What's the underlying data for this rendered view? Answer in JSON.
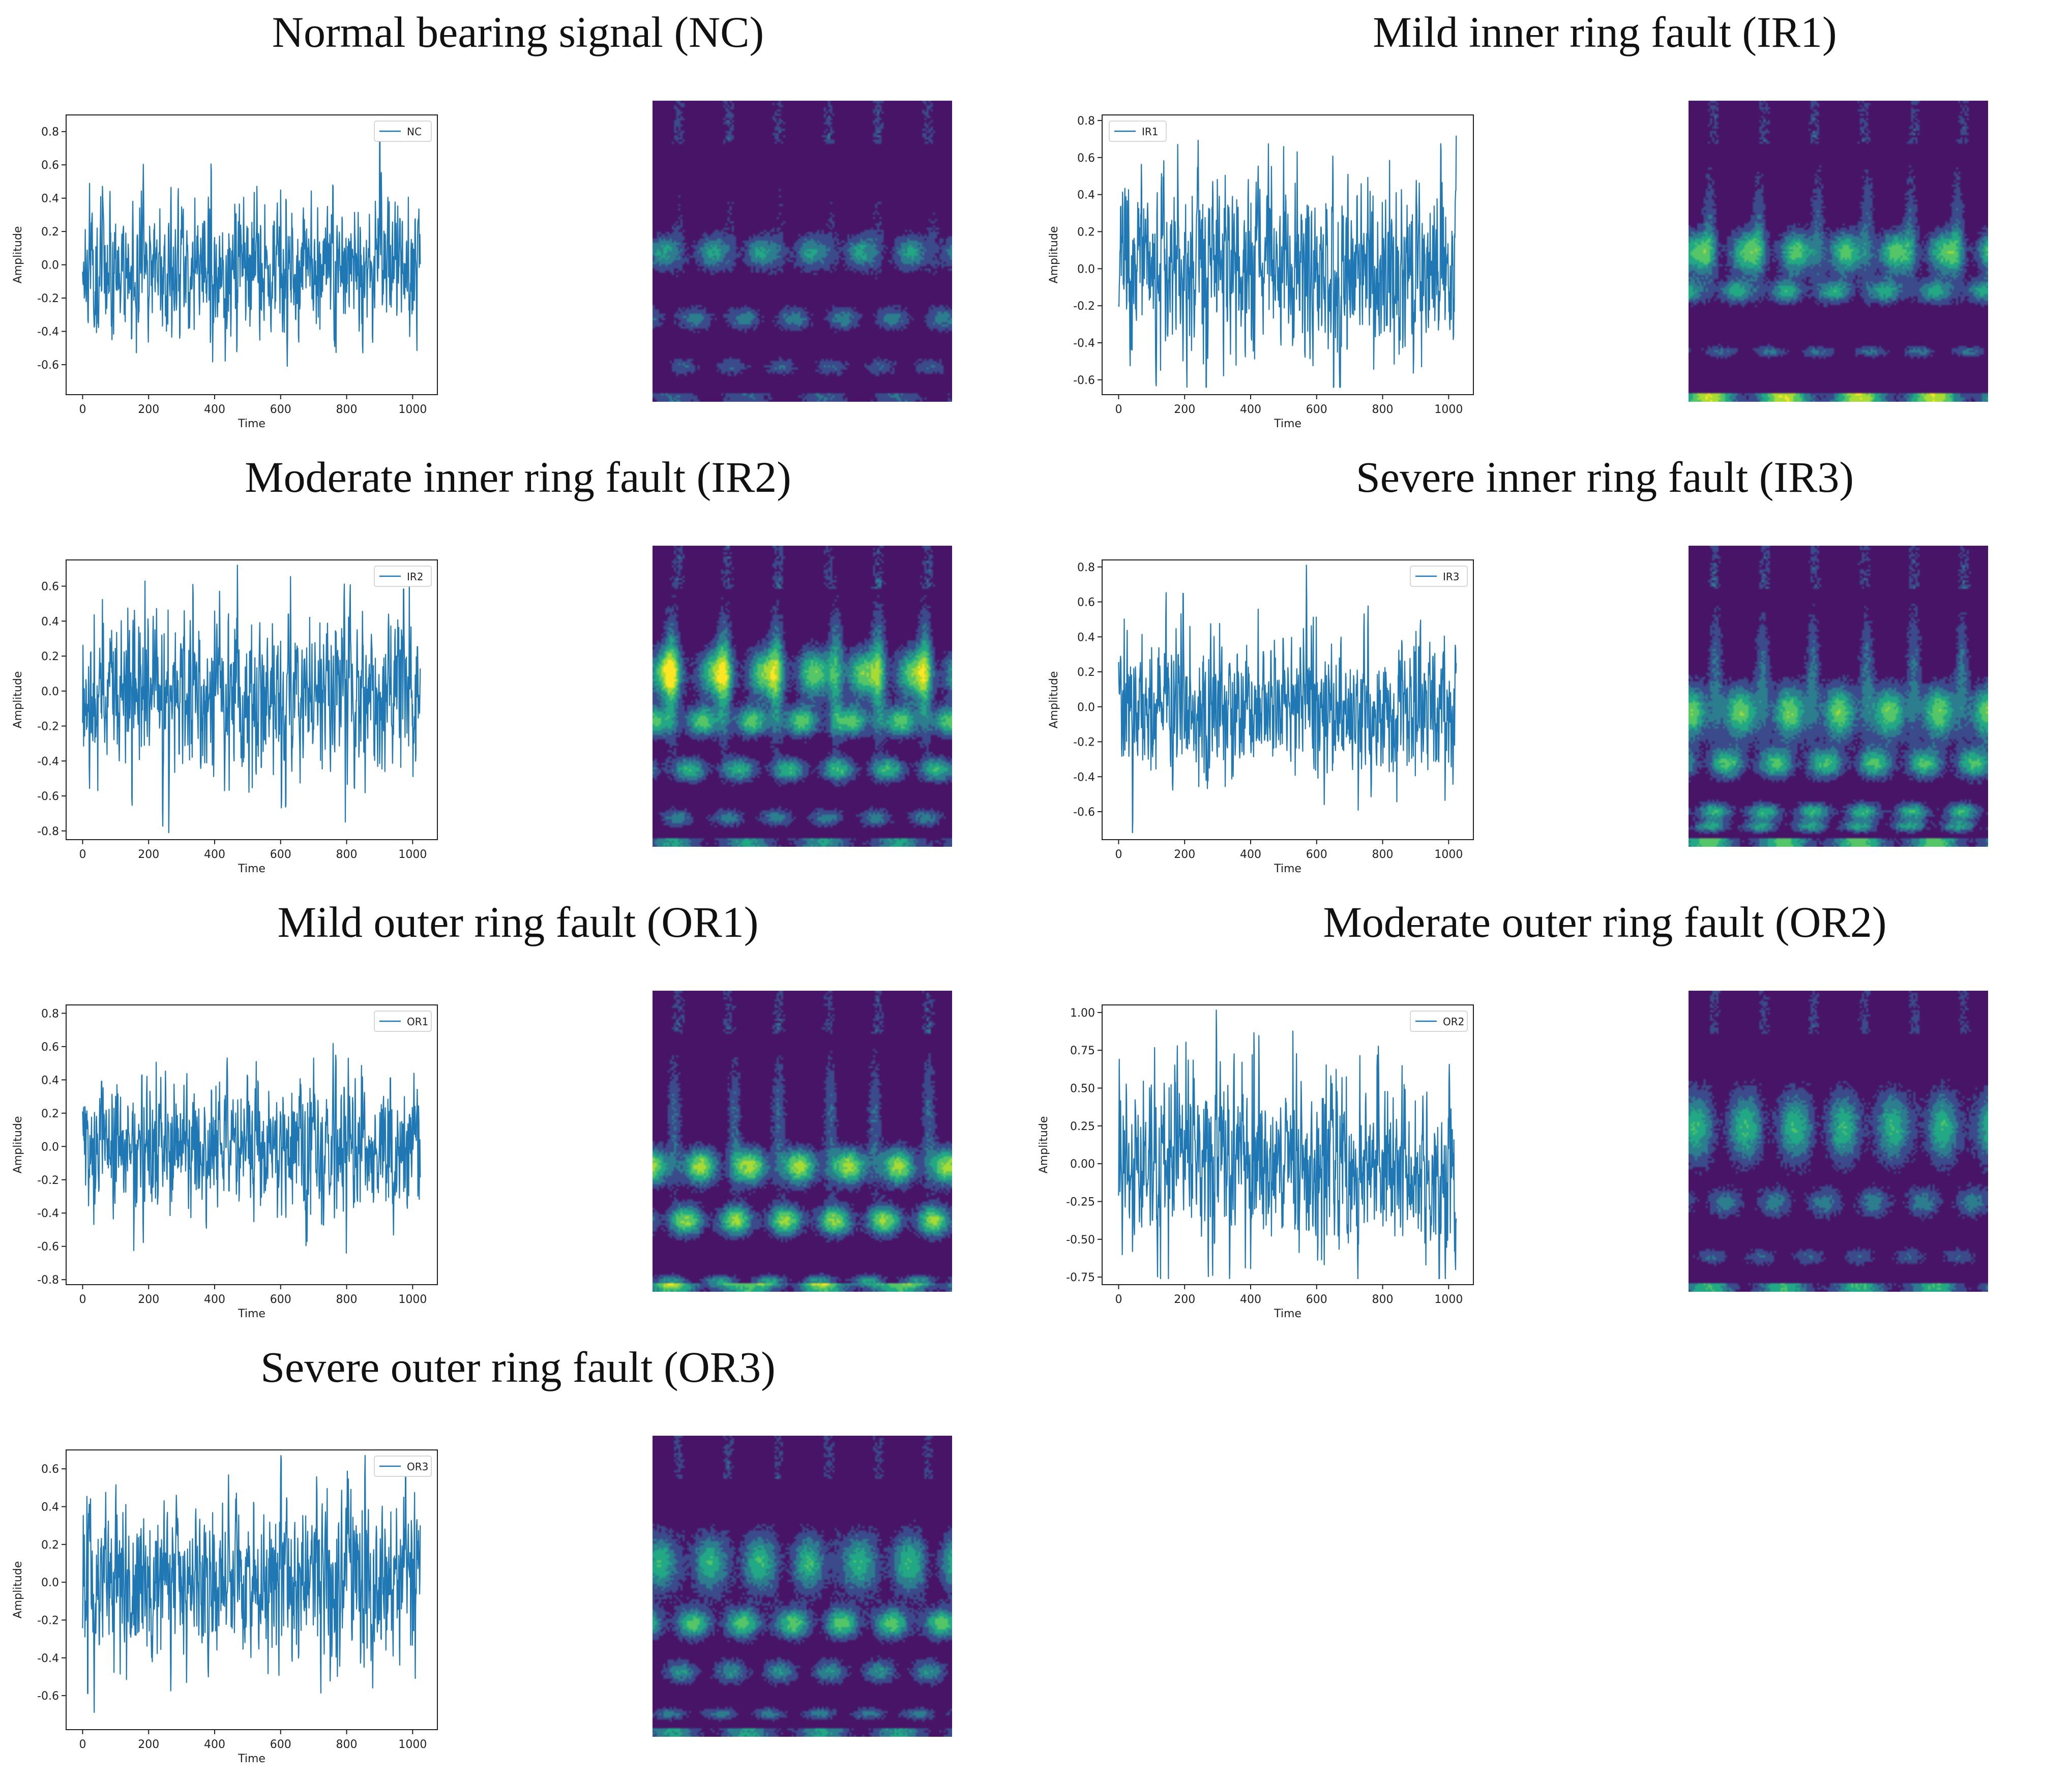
{
  "colors": {
    "line": "#1f77b4",
    "heat_background": "#4b0f66",
    "heat_palette": [
      "#481467",
      "#3a4a8b",
      "#2c7d8e",
      "#22a884",
      "#55c667",
      "#a8db34",
      "#fde725"
    ]
  },
  "chart_data": [
    {
      "type": "line",
      "title": "Normal bearing signal (NC)",
      "series": [
        {
          "name": "NC",
          "seed": 11,
          "amp": 0.27
        }
      ],
      "xlabel": "Time",
      "ylabel": "Amplitude",
      "xlim": [
        -50,
        1075
      ],
      "ylim": [
        -0.78,
        0.9
      ],
      "xticks": [
        0,
        200,
        400,
        600,
        800,
        1000
      ],
      "yticks": [
        -0.6,
        -0.4,
        -0.2,
        0.0,
        0.2,
        0.4,
        0.6,
        0.8
      ],
      "yticklabels": [
        "-0.6",
        "-0.4",
        "-0.2",
        "0.0",
        "0.2",
        "0.4",
        "0.6",
        "0.8"
      ],
      "legend_position": "top-right",
      "heat": {
        "seed": 11,
        "bands": [
          [
            0.5,
            0.06,
            0.5
          ],
          [
            0.72,
            0.04,
            0.4
          ],
          [
            0.88,
            0.03,
            0.3
          ]
        ],
        "spikes": 0.25,
        "bottom": 0.3
      }
    },
    {
      "type": "line",
      "title": "Mild inner ring fault (IR1)",
      "series": [
        {
          "name": "IR1",
          "seed": 23,
          "amp": 0.32
        }
      ],
      "xlabel": "Time",
      "ylabel": "Amplitude",
      "xlim": [
        -50,
        1075
      ],
      "ylim": [
        -0.68,
        0.83
      ],
      "xticks": [
        0,
        200,
        400,
        600,
        800,
        1000
      ],
      "yticks": [
        -0.6,
        -0.4,
        -0.2,
        0.0,
        0.2,
        0.4,
        0.6,
        0.8
      ],
      "yticklabels": [
        "-0.6",
        "-0.4",
        "-0.2",
        "0.0",
        "0.2",
        "0.4",
        "0.6",
        "0.8"
      ],
      "legend_position": "top-left",
      "heat": {
        "seed": 23,
        "bands": [
          [
            0.5,
            0.07,
            0.7
          ],
          [
            0.63,
            0.04,
            0.55
          ],
          [
            0.83,
            0.02,
            0.35
          ]
        ],
        "spikes": 0.5,
        "bottom": 0.9
      }
    },
    {
      "type": "line",
      "title": "Moderate inner ring fault (IR2)",
      "series": [
        {
          "name": "IR2",
          "seed": 37,
          "amp": 0.3
        }
      ],
      "xlabel": "Time",
      "ylabel": "Amplitude",
      "xlim": [
        -50,
        1075
      ],
      "ylim": [
        -0.85,
        0.75
      ],
      "xticks": [
        0,
        200,
        400,
        600,
        800,
        1000
      ],
      "yticks": [
        -0.8,
        -0.6,
        -0.4,
        -0.2,
        0.0,
        0.2,
        0.4,
        0.6
      ],
      "yticklabels": [
        "-0.8",
        "-0.6",
        "-0.4",
        "-0.2",
        "0.0",
        "0.2",
        "0.4",
        "0.6"
      ],
      "legend_position": "top-right",
      "heat": {
        "seed": 37,
        "bands": [
          [
            0.42,
            0.08,
            0.75
          ],
          [
            0.58,
            0.05,
            0.7
          ],
          [
            0.74,
            0.04,
            0.6
          ],
          [
            0.9,
            0.03,
            0.4
          ]
        ],
        "spikes": 0.85,
        "bottom": 0.5
      }
    },
    {
      "type": "line",
      "title": "Severe inner ring fault (IR3)",
      "series": [
        {
          "name": "IR3",
          "seed": 41,
          "amp": 0.28
        }
      ],
      "xlabel": "Time",
      "ylabel": "Amplitude",
      "xlim": [
        -50,
        1075
      ],
      "ylim": [
        -0.76,
        0.84
      ],
      "xticks": [
        0,
        200,
        400,
        600,
        800,
        1000
      ],
      "yticks": [
        -0.6,
        -0.4,
        -0.2,
        0.0,
        0.2,
        0.4,
        0.6,
        0.8
      ],
      "yticklabels": [
        "-0.6",
        "-0.4",
        "-0.2",
        "0.0",
        "0.2",
        "0.4",
        "0.6",
        "0.8"
      ],
      "legend_position": "top-right",
      "heat": {
        "seed": 41,
        "bands": [
          [
            0.55,
            0.09,
            0.75
          ],
          [
            0.72,
            0.05,
            0.65
          ],
          [
            0.88,
            0.03,
            0.6
          ],
          [
            0.93,
            0.02,
            0.5
          ]
        ],
        "spikes": 0.6,
        "bottom": 0.7
      }
    },
    {
      "type": "line",
      "title": "Mild outer ring fault (OR1)",
      "series": [
        {
          "name": "OR1",
          "seed": 53,
          "amp": 0.27
        }
      ],
      "xlabel": "Time",
      "ylabel": "Amplitude",
      "xlim": [
        -50,
        1075
      ],
      "ylim": [
        -0.83,
        0.85
      ],
      "xticks": [
        0,
        200,
        400,
        600,
        800,
        1000
      ],
      "yticks": [
        -0.8,
        -0.6,
        -0.4,
        -0.2,
        0.0,
        0.2,
        0.4,
        0.6,
        0.8
      ],
      "yticklabels": [
        "-0.8",
        "-0.6",
        "-0.4",
        "-0.2",
        "0.0",
        "0.2",
        "0.4",
        "0.6",
        "0.8"
      ],
      "legend_position": "top-right",
      "heat": {
        "seed": 53,
        "bands": [
          [
            0.58,
            0.06,
            0.85
          ],
          [
            0.76,
            0.05,
            0.8
          ],
          [
            0.96,
            0.02,
            0.5
          ]
        ],
        "spikes": 0.55,
        "bottom": 0.6
      }
    },
    {
      "type": "line",
      "title": "Moderate outer ring fault (OR2)",
      "series": [
        {
          "name": "OR2",
          "seed": 67,
          "amp": 0.38
        }
      ],
      "xlabel": "Time",
      "ylabel": "Amplitude",
      "xlim": [
        -50,
        1075
      ],
      "ylim": [
        -0.8,
        1.05
      ],
      "xticks": [
        0,
        200,
        400,
        600,
        800,
        1000
      ],
      "yticks": [
        -0.75,
        -0.5,
        -0.25,
        0.0,
        0.25,
        0.5,
        0.75,
        1.0
      ],
      "yticklabels": [
        "-0.75",
        "-0.50",
        "-0.25",
        "0.00",
        "0.25",
        "0.50",
        "0.75",
        "1.00"
      ],
      "legend_position": "top-right",
      "heat": {
        "seed": 67,
        "bands": [
          [
            0.45,
            0.12,
            0.6
          ],
          [
            0.7,
            0.05,
            0.4
          ],
          [
            0.88,
            0.03,
            0.3
          ]
        ],
        "spikes": 0.1,
        "bottom": 0.6
      }
    },
    {
      "type": "line",
      "title": "Severe outer ring fault (OR3)",
      "series": [
        {
          "name": "OR3",
          "seed": 79,
          "amp": 0.29
        }
      ],
      "xlabel": "Time",
      "ylabel": "Amplitude",
      "xlim": [
        -50,
        1075
      ],
      "ylim": [
        -0.78,
        0.7
      ],
      "xticks": [
        0,
        200,
        400,
        600,
        800,
        1000
      ],
      "yticks": [
        -0.6,
        -0.4,
        -0.2,
        0.0,
        0.2,
        0.4,
        0.6
      ],
      "yticklabels": [
        "-0.6",
        "-0.4",
        "-0.2",
        "0.0",
        "0.2",
        "0.4",
        "0.6"
      ],
      "legend_position": "top-right",
      "heat": {
        "seed": 79,
        "bands": [
          [
            0.42,
            0.1,
            0.6
          ],
          [
            0.62,
            0.05,
            0.7
          ],
          [
            0.78,
            0.04,
            0.45
          ],
          [
            0.92,
            0.02,
            0.4
          ]
        ],
        "spikes": 0.15,
        "bottom": 0.5
      }
    }
  ]
}
